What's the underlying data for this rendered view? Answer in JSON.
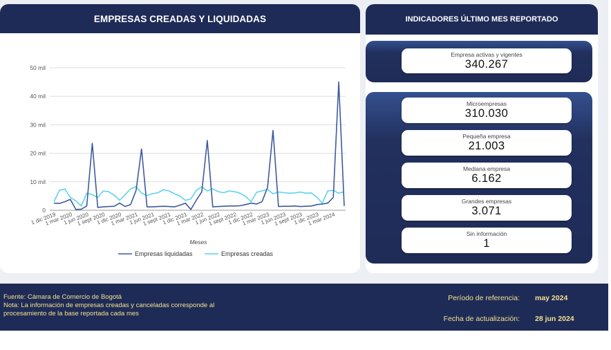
{
  "left_panel": {
    "title": "EMPRESAS CREADAS Y LIQUIDADAS"
  },
  "right_panel": {
    "title": "INDICADORES ÚLTIMO MES REPORTADO",
    "top_card": {
      "label": "Empresa activas y vigentes",
      "value": "340.267"
    },
    "cards": [
      {
        "label": "Microempresas",
        "value": "310.030"
      },
      {
        "label": "Pequeña empresa",
        "value": "21.003"
      },
      {
        "label": "Mediana empresa",
        "value": "6.162"
      },
      {
        "label": "Grandes empresas",
        "value": "3.071"
      },
      {
        "label": "Sin información",
        "value": "1"
      }
    ]
  },
  "chart_data": {
    "type": "line",
    "title": "",
    "xlabel": "Meses",
    "ylabel": "",
    "ylim": [
      0,
      50000
    ],
    "y_ticks": [
      "0",
      "10 mil",
      "20 mil",
      "30 mil",
      "40 mil",
      "50 mil"
    ],
    "x_tick_labels": [
      "1 dic 2019",
      "1 mar 2020",
      "1 jun 2020",
      "1 sept 2020",
      "1 dic 2020",
      "1 mar 2021",
      "1 jun 2021",
      "1 sept 2021",
      "1 dic 2021",
      "1 mar 2022",
      "1 jun 2022",
      "1 sept 2022",
      "1 dic 2022",
      "1 mar 2023",
      "1 jun 2023",
      "1 sept 2023",
      "1 dic 2023",
      "1 mar 2024"
    ],
    "x_start": "2019-12",
    "x_end": "2024-05",
    "legend_position": "bottom",
    "series": [
      {
        "name": "Empresas liquidadas",
        "color": "#3d5a9e",
        "values": [
          2500,
          2400,
          3000,
          3800,
          300,
          400,
          1500,
          23500,
          1000,
          1200,
          1300,
          1400,
          2500,
          1300,
          2000,
          7000,
          21500,
          1200,
          1200,
          1300,
          1400,
          1300,
          1200,
          1800,
          2500,
          300,
          3500,
          6500,
          24500,
          1200,
          1300,
          1400,
          1500,
          1500,
          1600,
          2000,
          2500,
          2200,
          3000,
          8000,
          28000,
          1300,
          1400,
          1400,
          1500,
          1300,
          1400,
          1500,
          2000,
          2200,
          2500,
          4500,
          45000,
          1500
        ]
      },
      {
        "name": "Empresas creadas",
        "color": "#5cd3eb",
        "values": [
          3000,
          7000,
          7500,
          4500,
          3300,
          1500,
          6000,
          5500,
          4500,
          6800,
          6500,
          5300,
          3500,
          5500,
          7500,
          8300,
          6000,
          5200,
          5800,
          6200,
          7200,
          6800,
          5800,
          5000,
          3500,
          4000,
          7000,
          8200,
          6800,
          7500,
          6500,
          6200,
          6800,
          6500,
          6000,
          4800,
          3000,
          6300,
          6800,
          7300,
          5800,
          6400,
          6200,
          6000,
          6100,
          6400,
          6000,
          6100,
          4600,
          2500,
          6800,
          7000,
          6000,
          6500
        ]
      }
    ]
  },
  "footer": {
    "source": "Fuente: Cámara de Comercio de Bogotá",
    "note": "Nota: La información de empresas creadas y canceladas corresponde al procesamiento de la base reportada cada mes",
    "period_label": "Período de referencia:",
    "period_value": "may 2024",
    "updated_label": "Fecha de actualización:",
    "updated_value": "28 jun 2024"
  }
}
